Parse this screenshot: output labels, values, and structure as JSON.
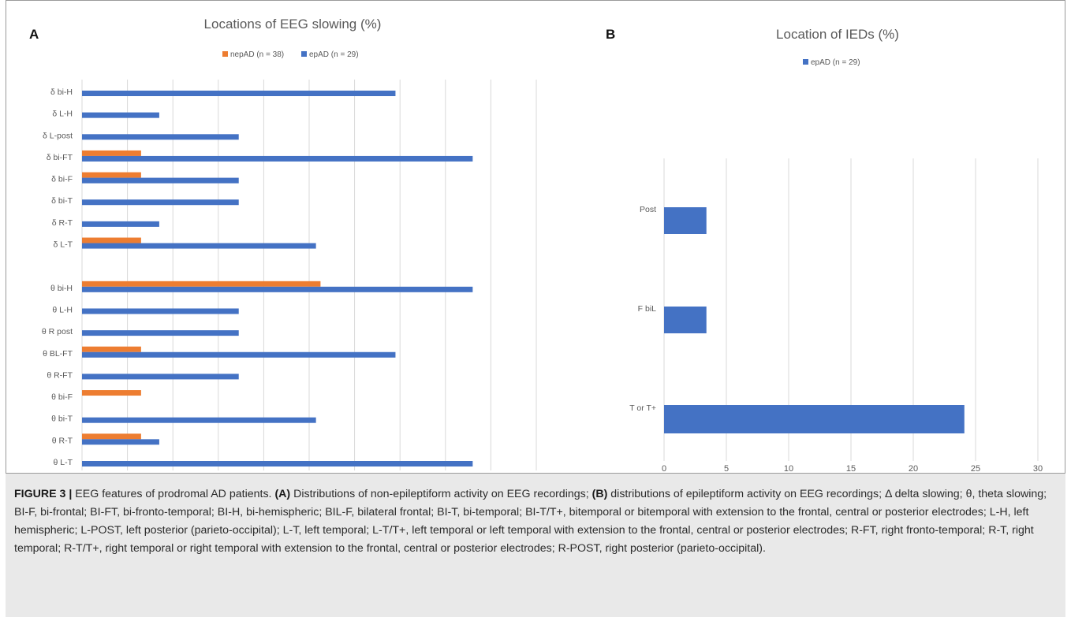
{
  "colors": {
    "orange": "#ED7D31",
    "blue": "#4472C4",
    "grid": "#d9d9d9"
  },
  "chart_data": [
    {
      "panel": "A",
      "type": "bar",
      "orientation": "horizontal",
      "title": "Locations of EEG slowing (%)",
      "categories": [
        "δ bi-H",
        "δ L-H",
        "δ L-post",
        "δ bi-FT",
        "δ bi-F",
        "δ bi-T",
        "δ R-T",
        "δ L-T",
        "",
        "θ bi-H",
        "θ L-H",
        "θ R post",
        "θ BL-FT",
        "θ R-FT",
        "θ bi-F",
        "θ bi-T",
        "θ R-T",
        "θ L-T"
      ],
      "series": [
        {
          "name": "nepAD (n = 38)",
          "color": "#ED7D31",
          "values": [
            0,
            0,
            0,
            2.6,
            2.6,
            0,
            0,
            2.6,
            null,
            10.5,
            0,
            0,
            2.6,
            0,
            2.6,
            0,
            2.6,
            0
          ]
        },
        {
          "name": "epAD (n = 29)",
          "color": "#4472C4",
          "values": [
            13.8,
            3.4,
            6.9,
            17.2,
            6.9,
            6.9,
            3.4,
            10.3,
            null,
            17.2,
            6.9,
            6.9,
            13.8,
            6.9,
            0,
            10.3,
            3.4,
            17.2
          ]
        }
      ],
      "xlim": [
        0,
        20
      ],
      "xticks": [
        "0",
        "2",
        "4",
        "6",
        "8",
        "10",
        "12",
        "14",
        "16",
        "18",
        "20"
      ],
      "grid": "vertical",
      "legend": "top"
    },
    {
      "panel": "B",
      "type": "bar",
      "orientation": "horizontal",
      "title": "Location of IEDs (%)",
      "categories": [
        "Post",
        "F biL",
        "T or T+"
      ],
      "series": [
        {
          "name": "epAD (n = 29)",
          "color": "#4472C4",
          "values": [
            3.4,
            3.4,
            24.1
          ]
        }
      ],
      "xlim": [
        0,
        30
      ],
      "xticks": [
        "0",
        "5",
        "10",
        "15",
        "20",
        "25",
        "30"
      ],
      "grid": "vertical",
      "legend": "top"
    }
  ],
  "caption": {
    "label": "FIGURE 3 |",
    "lead": "EEG features of prodromal AD patients.",
    "a_marker": "(A)",
    "a_text": "Distributions of non-epileptiform activity on EEG recordings;",
    "b_marker": "(B)",
    "b_text": "distributions of epileptiform activity on EEG recordings; Δ delta slowing; θ, theta slowing; BI-F, bi-frontal; BI-FT, bi-fronto-temporal; BI-H, bi-hemispheric; BIL-F, bilateral frontal; BI-T, bi-temporal; BI-T/T+, bitemporal or bitemporal with extension to the frontal, central or posterior electrodes; L-H, left hemispheric; L-POST, left posterior (parieto-occipital); L-T, left temporal; L-T/T+, left temporal or left temporal with extension to the frontal, central or posterior electrodes; R-FT, right fronto-temporal; R-T, right temporal; R-T/T+, right temporal or right temporal with extension to the frontal, central or posterior electrodes; R-POST, right posterior (parieto-occipital)."
  }
}
